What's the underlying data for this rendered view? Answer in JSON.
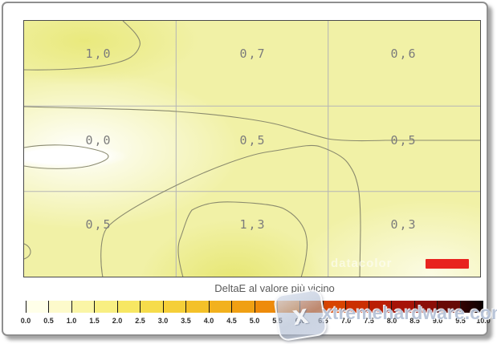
{
  "title": "DeltaE al valore più vicino",
  "watermark": {
    "site": "xtremehardware.com",
    "badge_glyph": "x",
    "brand": "datacolor",
    "brand_color": "#e8231f"
  },
  "chart_data": {
    "type": "heatmap",
    "subtype": "filled-contour-map",
    "title": "DeltaE al valore più vicino",
    "grid": {
      "rows": 3,
      "cols": 3,
      "gridlines": true
    },
    "cells": [
      {
        "row": 0,
        "col": 0,
        "label": "1,0",
        "value": 1.0
      },
      {
        "row": 0,
        "col": 1,
        "label": "0,7",
        "value": 0.7
      },
      {
        "row": 0,
        "col": 2,
        "label": "0,6",
        "value": 0.6
      },
      {
        "row": 1,
        "col": 0,
        "label": "0,0",
        "value": 0.0
      },
      {
        "row": 1,
        "col": 1,
        "label": "0,5",
        "value": 0.5
      },
      {
        "row": 1,
        "col": 2,
        "label": "0,5",
        "value": 0.5
      },
      {
        "row": 2,
        "col": 0,
        "label": "0,5",
        "value": 0.5
      },
      {
        "row": 2,
        "col": 1,
        "label": "1,3",
        "value": 1.3
      },
      {
        "row": 2,
        "col": 2,
        "label": "0,3",
        "value": 0.3
      }
    ],
    "colorbar": {
      "min": 0.0,
      "max": 10.0,
      "step": 0.5,
      "tick_labels": [
        "0.0",
        "0.5",
        "1.0",
        "1.5",
        "2.0",
        "2.5",
        "3.0",
        "3.5",
        "4.0",
        "4.5",
        "5.0",
        "5.5",
        "6.0",
        "6.5",
        "7.0",
        "7.5",
        "8.0",
        "8.5",
        "9.0",
        "9.5",
        "10.0"
      ],
      "segment_colors": [
        "#FFFFE9",
        "#FDFACB",
        "#FAF5A6",
        "#F8EF82",
        "#F7E763",
        "#F6DC4B",
        "#F5CF38",
        "#F4C129",
        "#F2B11D",
        "#F0A013",
        "#EE8B0B",
        "#EA7305",
        "#E35A02",
        "#D84401",
        "#CB2F01",
        "#BA1E05",
        "#A61408",
        "#8C0E08",
        "#680A05",
        "#330302"
      ],
      "legend_position": "bottom"
    },
    "heat_colors": {
      "low": "#FFFFFF",
      "mid": "#F1F1A6",
      "hot": "#E5E56C"
    }
  }
}
